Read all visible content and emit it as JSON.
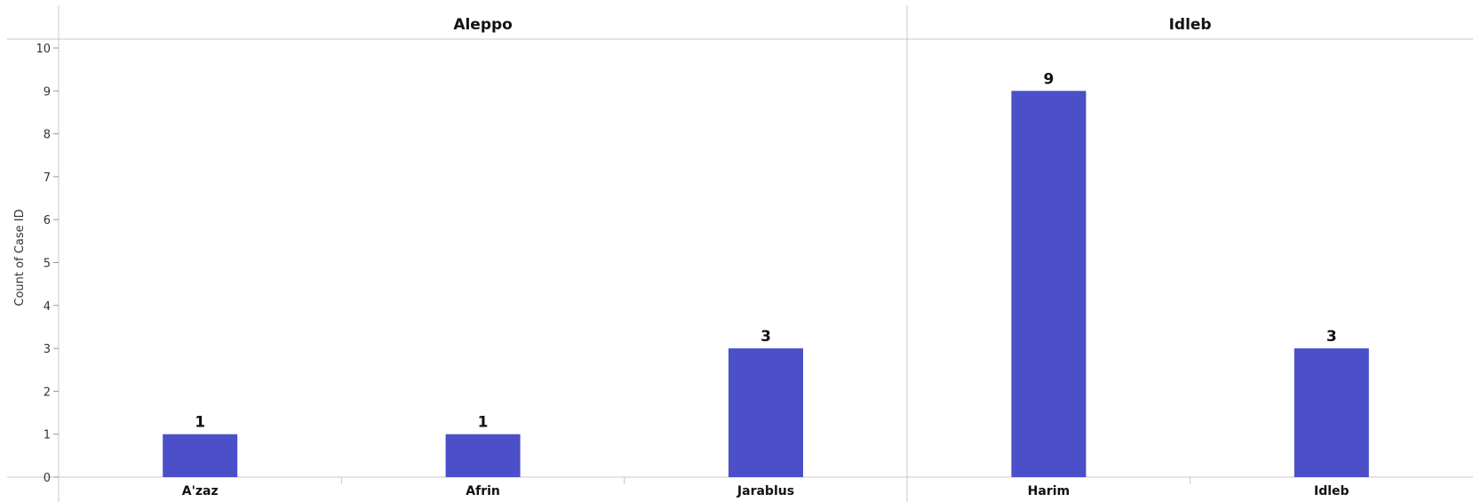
{
  "chart_data": {
    "type": "bar",
    "ylabel": "Count of Case ID",
    "ylim": [
      0,
      10
    ],
    "yticks": [
      0,
      1,
      2,
      3,
      4,
      5,
      6,
      7,
      8,
      9,
      10
    ],
    "color": "#4B4FC8",
    "panels": [
      {
        "name": "Aleppo",
        "categories": [
          "A'zaz",
          "Afrin",
          "Jarablus"
        ],
        "values": [
          1,
          1,
          3
        ]
      },
      {
        "name": "Idleb",
        "categories": [
          "Harim",
          "Idleb"
        ],
        "values": [
          9,
          3
        ]
      }
    ],
    "grid": false,
    "legend": "none"
  }
}
